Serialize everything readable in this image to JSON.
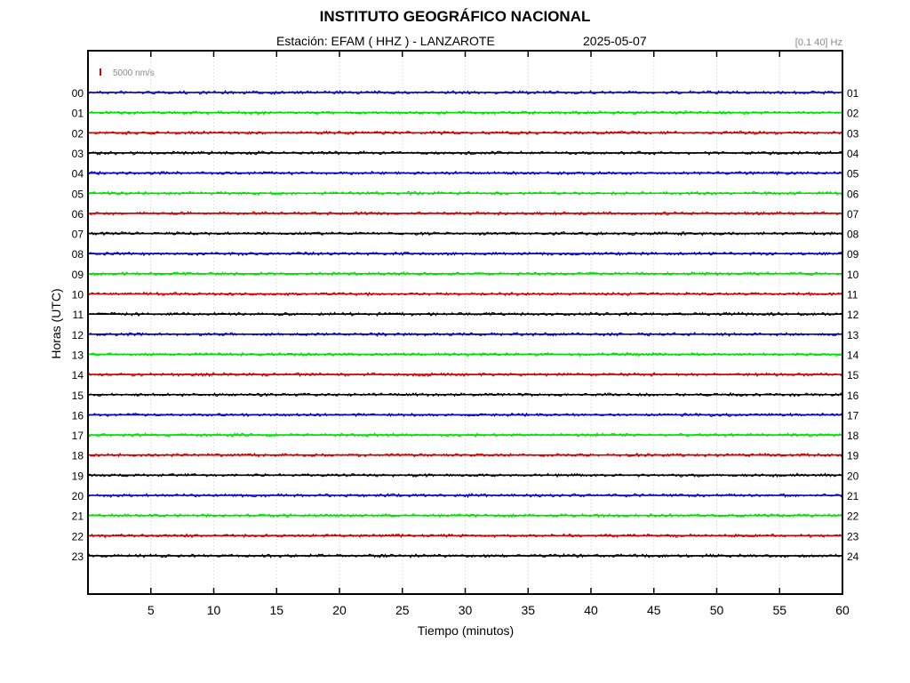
{
  "header": {
    "title": "INSTITUTO GEOGRÁFICO NACIONAL",
    "station_label": "Estación:  EFAM ( HHZ ) - LANZAROTE",
    "date": "2025-05-07",
    "filter": "[0.1 40] Hz"
  },
  "chart_data": {
    "type": "line",
    "xlabel": "Tiempo (minutos)",
    "ylabel": "Horas (UTC)",
    "xlim": [
      0,
      60
    ],
    "x_ticks": [
      5,
      10,
      15,
      20,
      25,
      30,
      35,
      40,
      45,
      50,
      55,
      60
    ],
    "left_hour_labels": [
      "00",
      "01",
      "02",
      "03",
      "04",
      "05",
      "06",
      "07",
      "08",
      "09",
      "10",
      "11",
      "12",
      "13",
      "14",
      "15",
      "16",
      "17",
      "18",
      "19",
      "20",
      "21",
      "22",
      "23"
    ],
    "right_hour_labels": [
      "01",
      "02",
      "03",
      "04",
      "05",
      "06",
      "07",
      "08",
      "09",
      "10",
      "11",
      "12",
      "13",
      "14",
      "15",
      "16",
      "17",
      "18",
      "19",
      "20",
      "21",
      "22",
      "23",
      "24"
    ],
    "trace_colors": [
      "#0000c8",
      "#00e000",
      "#d00000",
      "#000000"
    ],
    "scale_bar_label": "5000 nm/s",
    "scale_bar_color": "#d00000",
    "grid": true
  }
}
